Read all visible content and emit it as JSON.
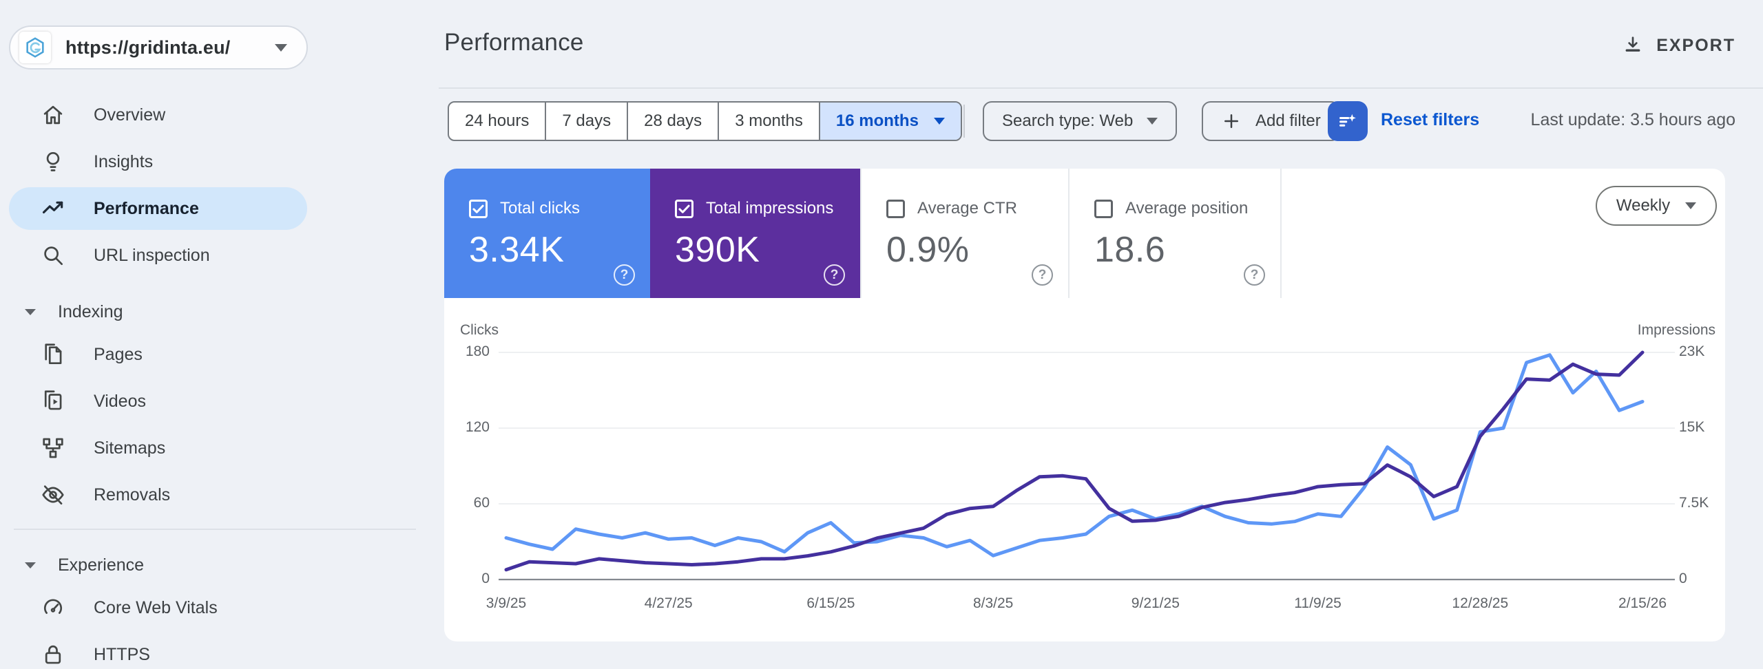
{
  "property_selector": {
    "url": "https://gridinta.eu/"
  },
  "sidebar": {
    "nav": [
      {
        "label": "Overview",
        "icon": "home-icon",
        "active": false
      },
      {
        "label": "Insights",
        "icon": "bulb-icon",
        "active": false
      },
      {
        "label": "Performance",
        "icon": "trend-icon",
        "active": true
      },
      {
        "label": "URL inspection",
        "icon": "search-icon",
        "active": false
      }
    ],
    "sections": [
      {
        "label": "Indexing",
        "items": [
          {
            "label": "Pages",
            "icon": "pages-icon"
          },
          {
            "label": "Videos",
            "icon": "videos-icon"
          },
          {
            "label": "Sitemaps",
            "icon": "sitemap-icon"
          },
          {
            "label": "Removals",
            "icon": "eye-off-icon"
          }
        ]
      },
      {
        "label": "Experience",
        "items": [
          {
            "label": "Core Web Vitals",
            "icon": "speed-icon"
          },
          {
            "label": "HTTPS",
            "icon": "lock-icon"
          }
        ]
      }
    ]
  },
  "header": {
    "title": "Performance",
    "export_label": "EXPORT"
  },
  "filters": {
    "date_ranges": [
      "24 hours",
      "7 days",
      "28 days",
      "3 months",
      "16 months"
    ],
    "selected_range": "16 months",
    "search_type": "Search type: Web",
    "add_filter": "Add filter",
    "reset": "Reset filters",
    "last_update": "Last update: 3.5 hours ago"
  },
  "metrics": {
    "cards": [
      {
        "label": "Total clicks",
        "value": "3.34K",
        "checked": true,
        "bg": "#4e86ec",
        "fg": "#ffffff",
        "help_fg": "rgba(255,255,255,0.85)"
      },
      {
        "label": "Total impressions",
        "value": "390K",
        "checked": true,
        "bg": "#5c2f9e",
        "fg": "#ffffff",
        "help_fg": "rgba(255,255,255,0.85)"
      },
      {
        "label": "Average CTR",
        "value": "0.9%",
        "checked": false,
        "bg": "#ffffff",
        "fg": "#5f6368",
        "help_fg": "#8f959b"
      },
      {
        "label": "Average position",
        "value": "18.6",
        "checked": false,
        "bg": "#ffffff",
        "fg": "#5f6368",
        "help_fg": "#8f959b"
      }
    ]
  },
  "granularity": "Weekly",
  "chart_data": {
    "type": "line",
    "x_unit": "week",
    "n_points": 50,
    "x_tick_labels": [
      "3/9/25",
      "4/27/25",
      "6/15/25",
      "8/3/25",
      "9/21/25",
      "11/9/25",
      "12/28/25",
      "2/15/26"
    ],
    "x_label_indices": [
      0,
      7,
      14,
      21,
      28,
      35,
      42,
      49
    ],
    "left_axis": {
      "label": "Clicks",
      "ticks": [
        "0",
        "60",
        "120",
        "180"
      ],
      "max": 180
    },
    "right_axis": {
      "label": "Impressions",
      "ticks": [
        "0",
        "7.5K",
        "15K",
        "23K"
      ],
      "max": 23000
    },
    "grid": true,
    "series": [
      {
        "name": "Clicks",
        "axis": "left",
        "color": "#5e97f6",
        "values": [
          33,
          28,
          24,
          40,
          36,
          33,
          37,
          32,
          33,
          27,
          33,
          30,
          22,
          37,
          45,
          29,
          30,
          35,
          33,
          26,
          31,
          19,
          25,
          31,
          33,
          36,
          50,
          55,
          48,
          52,
          58,
          50,
          45,
          44,
          46,
          52,
          50,
          73,
          105,
          91,
          48,
          55,
          117,
          120,
          172,
          178,
          148,
          165,
          134,
          141
        ]
      },
      {
        "name": "Impressions",
        "axis": "right",
        "color": "#43309e",
        "values": [
          1000,
          1800,
          1700,
          1600,
          2100,
          1900,
          1700,
          1600,
          1500,
          1600,
          1800,
          2100,
          2100,
          2400,
          2800,
          3400,
          4200,
          4700,
          5200,
          6600,
          7200,
          7400,
          9000,
          10400,
          10500,
          10200,
          7200,
          5900,
          6000,
          6400,
          7300,
          7800,
          8100,
          8500,
          8800,
          9400,
          9600,
          9700,
          11600,
          10400,
          8400,
          9400,
          14500,
          17300,
          20300,
          20200,
          21800,
          20800,
          20700,
          23000
        ]
      }
    ]
  }
}
